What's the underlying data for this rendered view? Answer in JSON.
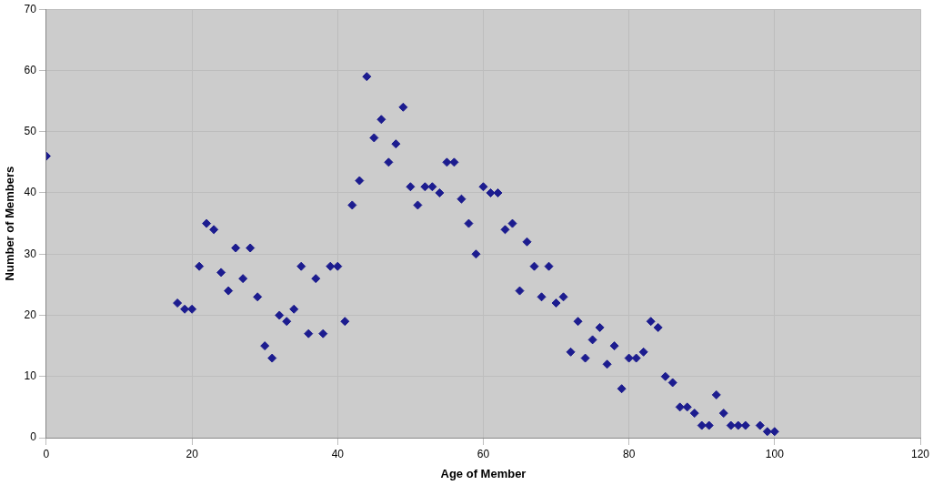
{
  "chart_data": {
    "type": "scatter",
    "xlabel": "Age of Member",
    "ylabel": "Number of Members",
    "x": [
      0,
      18,
      19,
      20,
      21,
      22,
      23,
      24,
      25,
      26,
      27,
      28,
      29,
      30,
      31,
      32,
      33,
      34,
      35,
      36,
      37,
      38,
      39,
      40,
      41,
      42,
      43,
      44,
      45,
      46,
      47,
      48,
      49,
      50,
      51,
      52,
      53,
      54,
      55,
      56,
      57,
      58,
      59,
      60,
      61,
      62,
      63,
      64,
      65,
      66,
      67,
      68,
      69,
      70,
      71,
      72,
      73,
      74,
      75,
      76,
      77,
      78,
      79,
      80,
      81,
      82,
      83,
      84,
      85,
      86,
      87,
      88,
      89,
      90,
      91,
      92,
      93,
      94,
      95,
      96,
      98,
      99,
      100
    ],
    "series": [
      {
        "color": "#1c1c8f",
        "values": [
          46,
          22,
          21,
          21,
          28,
          35,
          34,
          27,
          24,
          31,
          26,
          31,
          23,
          15,
          13,
          20,
          19,
          21,
          28,
          17,
          26,
          17,
          28,
          28,
          19,
          38,
          42,
          59,
          49,
          52,
          45,
          48,
          54,
          41,
          38,
          41,
          41,
          40,
          45,
          45,
          39,
          35,
          30,
          41,
          40,
          40,
          34,
          35,
          24,
          32,
          28,
          23,
          28,
          22,
          23,
          14,
          19,
          13,
          16,
          18,
          12,
          15,
          8,
          13,
          13,
          14,
          19,
          18,
          10,
          9,
          5,
          5,
          4,
          2,
          2,
          7,
          4,
          2,
          2,
          2,
          2,
          1,
          1
        ]
      }
    ],
    "xlim": [
      0,
      120
    ],
    "xticks": [
      0,
      20,
      40,
      60,
      80,
      100,
      120
    ],
    "ylim": [
      0,
      70
    ],
    "yticks": [
      0,
      10,
      20,
      30,
      40,
      50,
      60,
      70
    ],
    "grid": true,
    "legend": false,
    "marker": "diamond"
  }
}
